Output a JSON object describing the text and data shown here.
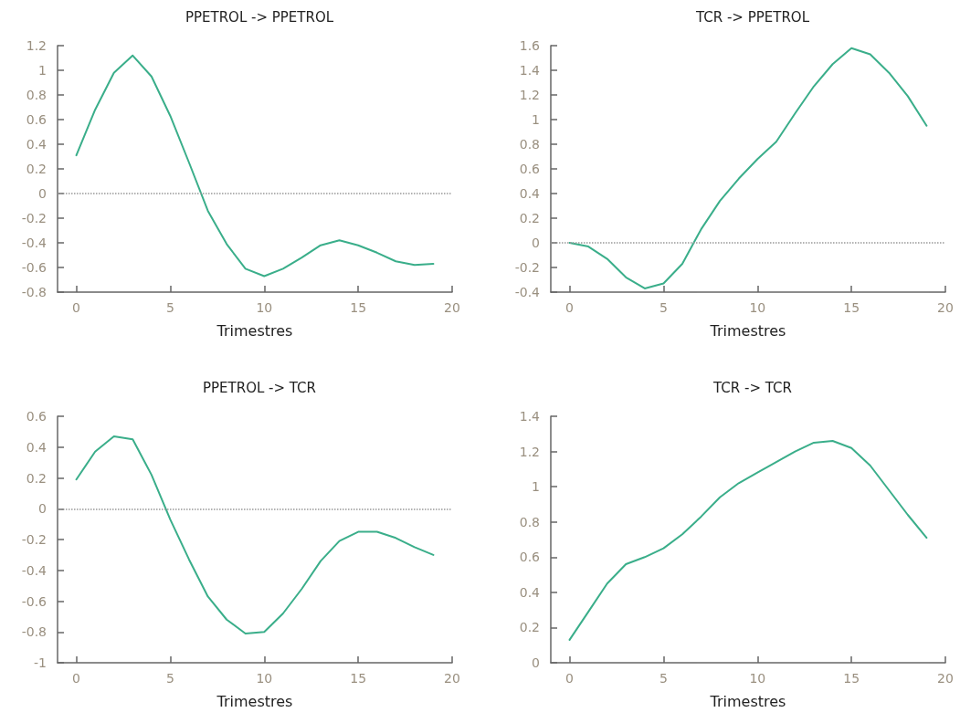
{
  "chart_data": [
    {
      "type": "line",
      "title": "PPETROL -> PPETROL",
      "xlabel": "Trimestres",
      "x": [
        0,
        1,
        2,
        3,
        4,
        5,
        6,
        7,
        8,
        9,
        10,
        11,
        12,
        13,
        14,
        15,
        16,
        17,
        18,
        19
      ],
      "series": [
        {
          "color": "#3aae8a",
          "values": [
            0.31,
            0.68,
            0.98,
            1.12,
            0.95,
            0.63,
            0.25,
            -0.14,
            -0.41,
            -0.61,
            -0.67,
            -0.61,
            -0.52,
            -0.42,
            -0.38,
            -0.42,
            -0.48,
            -0.55,
            -0.58,
            -0.57
          ]
        }
      ],
      "xlim": [
        -1,
        20
      ],
      "xticks": [
        0,
        5,
        10,
        15,
        20
      ],
      "ylim": [
        -0.8,
        1.2
      ],
      "yticks": [
        -0.8,
        -0.6,
        -0.4,
        -0.2,
        0,
        0.2,
        0.4,
        0.6,
        0.8,
        1,
        1.2
      ],
      "ref_lines": [
        {
          "axis": "y",
          "value": 0,
          "label": null,
          "color": "#999999",
          "line_style": "dotted"
        }
      ],
      "grid": false,
      "marker": "none",
      "line_style": "solid"
    },
    {
      "type": "line",
      "title": "TCR -> PPETROL",
      "xlabel": "Trimestres",
      "x": [
        0,
        1,
        2,
        3,
        4,
        5,
        6,
        7,
        8,
        9,
        10,
        11,
        12,
        13,
        14,
        15,
        16,
        17,
        18,
        19
      ],
      "series": [
        {
          "color": "#3aae8a",
          "values": [
            0,
            -0.03,
            -0.13,
            -0.28,
            -0.37,
            -0.33,
            -0.17,
            0.11,
            0.34,
            0.52,
            0.68,
            0.82,
            1.05,
            1.27,
            1.45,
            1.58,
            1.53,
            1.38,
            1.19,
            0.95
          ]
        }
      ],
      "xlim": [
        -1,
        20
      ],
      "xticks": [
        0,
        5,
        10,
        15,
        20
      ],
      "ylim": [
        -0.4,
        1.6
      ],
      "yticks": [
        -0.4,
        -0.2,
        0,
        0.2,
        0.4,
        0.6,
        0.8,
        1,
        1.2,
        1.4,
        1.6
      ],
      "ref_lines": [
        {
          "axis": "y",
          "value": 0,
          "label": null,
          "color": "#999999",
          "line_style": "dotted"
        }
      ],
      "grid": false,
      "marker": "none",
      "line_style": "solid"
    },
    {
      "type": "line",
      "title": "PPETROL -> TCR",
      "xlabel": "Trimestres",
      "x": [
        0,
        1,
        2,
        3,
        4,
        5,
        6,
        7,
        8,
        9,
        10,
        11,
        12,
        13,
        14,
        15,
        16,
        17,
        18,
        19
      ],
      "series": [
        {
          "color": "#3aae8a",
          "values": [
            0.19,
            0.37,
            0.47,
            0.45,
            0.22,
            -0.07,
            -0.33,
            -0.57,
            -0.72,
            -0.81,
            -0.8,
            -0.68,
            -0.52,
            -0.34,
            -0.21,
            -0.15,
            -0.15,
            -0.19,
            -0.25,
            -0.3
          ]
        }
      ],
      "xlim": [
        -1,
        20
      ],
      "xticks": [
        0,
        5,
        10,
        15,
        20
      ],
      "ylim": [
        -1,
        0.6
      ],
      "yticks": [
        -1,
        -0.8,
        -0.6,
        -0.4,
        -0.2,
        0,
        0.2,
        0.4,
        0.6
      ],
      "ref_lines": [
        {
          "axis": "y",
          "value": 0,
          "label": null,
          "color": "#999999",
          "line_style": "dotted"
        }
      ],
      "grid": false,
      "marker": "none",
      "line_style": "solid"
    },
    {
      "type": "line",
      "title": "TCR -> TCR",
      "xlabel": "Trimestres",
      "x": [
        0,
        1,
        2,
        3,
        4,
        5,
        6,
        7,
        8,
        9,
        10,
        11,
        12,
        13,
        14,
        15,
        16,
        17,
        18,
        19
      ],
      "series": [
        {
          "color": "#3aae8a",
          "values": [
            0.13,
            0.29,
            0.45,
            0.56,
            0.6,
            0.65,
            0.73,
            0.83,
            0.94,
            1.02,
            1.08,
            1.14,
            1.2,
            1.25,
            1.26,
            1.22,
            1.12,
            0.98,
            0.84,
            0.71
          ]
        }
      ],
      "xlim": [
        -1,
        20
      ],
      "xticks": [
        0,
        5,
        10,
        15,
        20
      ],
      "ylim": [
        0,
        1.4
      ],
      "yticks": [
        0,
        0.2,
        0.4,
        0.6,
        0.8,
        1,
        1.2,
        1.4
      ],
      "grid": false,
      "marker": "none",
      "line_style": "solid"
    }
  ]
}
